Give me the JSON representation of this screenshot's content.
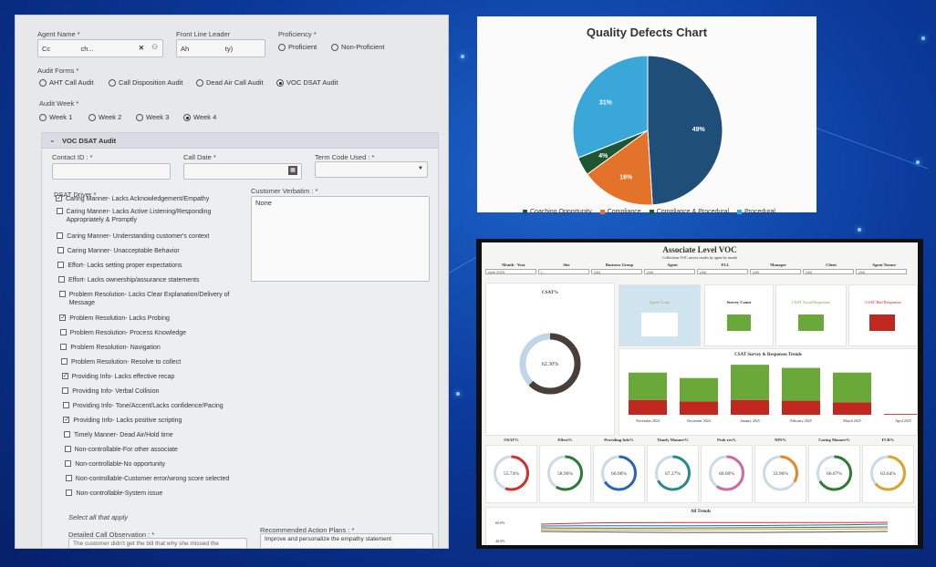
{
  "form": {
    "agent_name": {
      "label": "Agent Name *",
      "value": "Cc                ch..."
    },
    "front_line_leader": {
      "label": "Front Line Leader",
      "value": "Ah                   ty)"
    },
    "proficiency": {
      "label": "Proficiency *",
      "options": [
        "Proficient",
        "Non-Proficient"
      ],
      "selected": ""
    },
    "audit_forms": {
      "label": "Audit Forms *",
      "options": [
        "AHT Call Audit",
        "Call Disposition Audit",
        "Dead Air Call Audit",
        "VOC DSAT Audit"
      ],
      "selected": "VOC DSAT Audit"
    },
    "audit_week": {
      "label": "Audit Week *",
      "options": [
        "Week 1",
        "Week 2",
        "Week 3",
        "Week 4"
      ],
      "selected": "Week 4"
    },
    "section_title": "VOC DSAT Audit",
    "contact_id": {
      "label": "Contact ID : *",
      "value": ""
    },
    "call_date": {
      "label": "Call Date *",
      "value": ""
    },
    "term_code": {
      "label": "Term Code Used : *",
      "value": ""
    },
    "dsat_driver_label": "DSAT Driver *",
    "customer_verbatim": {
      "label": "Customer Verbatim : *",
      "value": "None"
    },
    "drivers": [
      {
        "text": "Caring Manner- Lacks Acknowledgement/Empathy",
        "checked": true
      },
      {
        "text": "Caring Manner- Lacks Active Listening/Responding Appropriately & Promptly",
        "checked": false
      },
      {
        "text": "Caring Manner- Understanding customer's context",
        "checked": false
      },
      {
        "text": "Caring Manner- Unacceptable Behavior",
        "checked": false
      },
      {
        "text": "Effort- Lacks setting proper expectations",
        "checked": false
      },
      {
        "text": "Effort- Lacks ownership/assurance statements",
        "checked": false
      },
      {
        "text": "Problem Resolution- Lacks Clear Explanation/Delivery of Message",
        "checked": false
      },
      {
        "text": "Problem Resolution- Lacks Probing",
        "checked": true
      },
      {
        "text": "Problem Resolution- Process Knowledge",
        "checked": false
      },
      {
        "text": "Problem Resolution- Navigation",
        "checked": false
      },
      {
        "text": "Problem Resolution- Resolve to collect",
        "checked": false
      },
      {
        "text": "Providing Info- Lacks effective recap",
        "checked": true
      },
      {
        "text": "Providing Info- Verbal Collision",
        "checked": false
      },
      {
        "text": "Providing Info- Tone/Accent/Lacks confidence/Pacing",
        "checked": false
      },
      {
        "text": "Providing Info- Lacks positive scripting",
        "checked": true
      },
      {
        "text": "Timely Manner- Dead Air/Hold time",
        "checked": false
      },
      {
        "text": "Non-controllable-For other associate",
        "checked": false
      },
      {
        "text": "Non-controllable-No opportunity",
        "checked": false
      },
      {
        "text": "Non-controllable-Customer error/wrong score selected",
        "checked": false
      },
      {
        "text": "Non-controllable-System issue",
        "checked": false
      }
    ],
    "select_all_note": "Select all that apply",
    "detailed_obs": {
      "label": "Detailed Call Observation : *",
      "value": "The customer didn't get the bill that why she missed the"
    },
    "recommended": {
      "label": "Recommended Action Plans : *",
      "value": "Improve and personalize the empathy statement"
    }
  },
  "chart_data": [
    {
      "type": "pie",
      "title": "Quality Defects Chart",
      "categories": [
        "Coaching Opportunity",
        "Compliance",
        "Compliance & Procedural",
        "Procedural"
      ],
      "values": [
        49,
        16,
        4,
        31
      ],
      "labels": [
        "49%",
        "16%",
        "4%",
        "31%"
      ],
      "colors": [
        "#1f4e79",
        "#e3722b",
        "#1e5631",
        "#3ba7d9"
      ],
      "legend": "bottom"
    },
    {
      "type": "bar",
      "title": "CSAT Survey & Responses Trends",
      "categories": [
        "November 2024",
        "December 2024",
        "January 2025",
        "February 2025",
        "March 2025",
        "April 2025"
      ],
      "series": [
        {
          "name": "CSAT Good Responses",
          "values": [
            35,
            30,
            45,
            42,
            38,
            0
          ],
          "color": "#6aa83a"
        },
        {
          "name": "CSAT Bad Responses",
          "values": [
            19,
            17,
            19,
            18,
            16,
            1
          ],
          "color": "#c0271e"
        }
      ]
    },
    {
      "type": "pie",
      "title": "CSAT%",
      "values": [
        62.3
      ],
      "labels": [
        "62.30%"
      ]
    },
    {
      "type": "line",
      "title": "All Trends",
      "ytick_labels": [
        "60.0%",
        "40.0%"
      ]
    }
  ],
  "voc": {
    "title": "Associate Level VOC",
    "subtitle": "Collections VOC survey results by agent by month",
    "filters": [
      {
        "label": "Month - Year",
        "value": "April 2025"
      },
      {
        "label": "Site",
        "value": "(..."
      },
      {
        "label": "Business Group",
        "value": "(All)"
      },
      {
        "label": "Agent",
        "value": "(All)"
      },
      {
        "label": "FLL",
        "value": "(All)"
      },
      {
        "label": "Manager",
        "value": "(All)"
      },
      {
        "label": "Client",
        "value": "(All)"
      },
      {
        "label": "Agent Tenure",
        "value": "(All)"
      }
    ],
    "kpi_titles": [
      "Agent Count",
      "Survey Count",
      "CSAT Good Responses",
      "CSAT Bad Responses"
    ],
    "gauges": [
      {
        "label": "OSAT%",
        "value": "55.74%",
        "pct": 55.74,
        "color": "#d62d2d"
      },
      {
        "label": "Effort%",
        "value": "58.96%",
        "pct": 58.96,
        "color": "#2f7a36"
      },
      {
        "label": "Providing Info%",
        "value": "66.06%",
        "pct": 66.06,
        "color": "#2a64b4"
      },
      {
        "label": "Timely Manner%",
        "value": "67.27%",
        "pct": 67.27,
        "color": "#2a8a8a"
      },
      {
        "label": "Prob res%",
        "value": "60.00%",
        "pct": 60.0,
        "color": "#d06aa0"
      },
      {
        "label": "NPS%",
        "value": "33.96%",
        "pct": 33.96,
        "color": "#e08a2a"
      },
      {
        "label": "Caring Manner%",
        "value": "66.67%",
        "pct": 66.67,
        "color": "#2f7a36"
      },
      {
        "label": "FCR%",
        "value": "63.64%",
        "pct": 63.64,
        "color": "#d9a52a"
      }
    ]
  }
}
